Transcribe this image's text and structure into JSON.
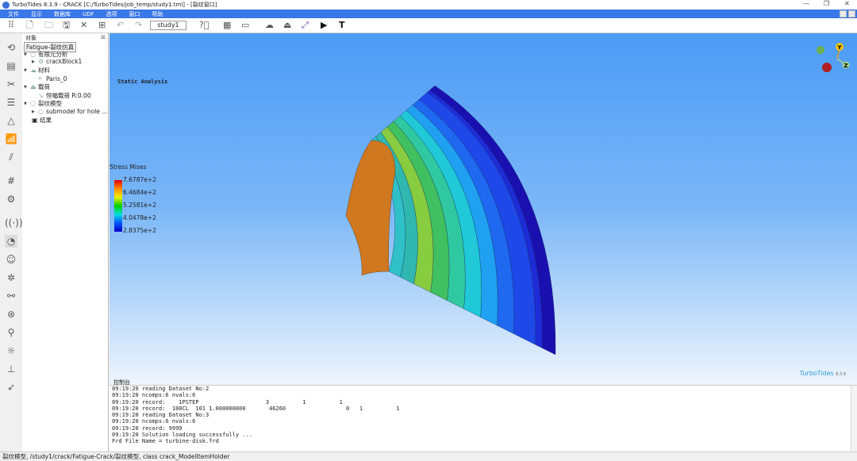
{
  "window": {
    "title": "TurboTides 8.3.9 - CRACK [C:/TurboTides/job_temp/study1.tml] - [裂纹窗口]"
  },
  "menu": [
    "文件",
    "显示",
    "数据库",
    "UDF",
    "选项",
    "窗口",
    "帮助"
  ],
  "toolbar": {
    "study": "study1"
  },
  "tree": {
    "header": "对象",
    "root": "Fatigue-裂纹仿真",
    "nodes": [
      {
        "label": "有限元分析",
        "level": 0
      },
      {
        "label": "crackBlock1",
        "level": 1
      },
      {
        "label": "材料",
        "level": 0
      },
      {
        "label": "Paris_0",
        "level": 1
      },
      {
        "label": "载荷",
        "level": 0
      },
      {
        "label": "恒幅载荷 R:0.00",
        "level": 1
      },
      {
        "label": "裂纹模型",
        "level": 0
      },
      {
        "label": "submodel for hole ...",
        "level": 1
      },
      {
        "label": "结果",
        "level": 0
      }
    ]
  },
  "viewport": {
    "analysis": "Static Analysis",
    "legend_title": "Stress  Mises",
    "legend_ticks": [
      "7.6787e+2",
      "6.4684e+2",
      "5.2581e+2",
      "4.0478e+2",
      "2.8375e+2"
    ],
    "brand": "TurboTides",
    "version": "8.3.9",
    "axes": [
      "Y",
      "Z"
    ]
  },
  "console": {
    "header": "控制台",
    "lines": [
      "09:19:20 reading Dataset No:2",
      "09:19:20 ncomps:6 nvals:6",
      "09:19:20 record:    1PSTEP                    3          1          1",
      "09:19:20 record:  100CL  101 1.000000000       46260                  0   1          1",
      "09:19:20 reading Dataset No:3",
      "09:19:20 ncomps:6 nvals:6",
      "09:19:20 record: 9999",
      "09:19:20 Solution loading successfully ...",
      "Frd File Name = turbine-disk.frd"
    ]
  },
  "status": "裂纹模型, /study1/crack/Fatigue-Crack/裂纹模型, class crack_ModelItemHolder"
}
